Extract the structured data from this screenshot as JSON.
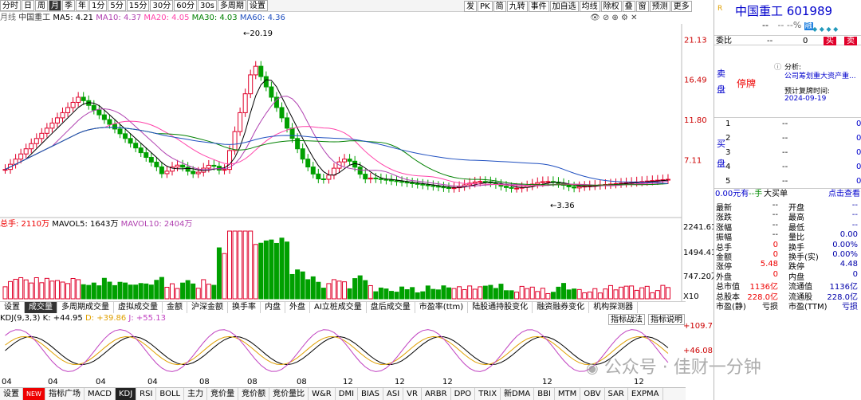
{
  "toolbar": {
    "items": [
      "分时",
      "日",
      "周",
      "月",
      "季",
      "年",
      "1分",
      "5分",
      "15分",
      "30分",
      "60分",
      "30s",
      "多周期",
      "设置"
    ],
    "active": "月",
    "right": [
      "发",
      "PK",
      "简",
      "九转",
      "事件",
      "加自选",
      "均线",
      "除权",
      "叠",
      "窗",
      "预测",
      "更多"
    ]
  },
  "legend": {
    "label": "月线",
    "name": "中国重工",
    "ma5": "MA5: 4.21",
    "ma10": "MA10: 4.37",
    "ma20": "MA20: 4.05",
    "ma30": "MA30: 4.03",
    "ma60": "MA60: 4.36"
  },
  "price_axis": [
    "21.13",
    "16.49",
    "11.80",
    "7.11"
  ],
  "price_peak": "20.19",
  "price_low": "3.36",
  "vol_legend": {
    "total": "总手: 2110万",
    "mavol5": "MAVOL5: 1643万",
    "mavol10": "MAVOL10: 2404万"
  },
  "vol_axis": [
    "2241.61",
    "1494.41",
    "747.20万",
    "X10"
  ],
  "tabs": [
    "设置",
    "成交量",
    "多周期成交量",
    "虚拟成交量",
    "金额",
    "沪深金额",
    "换手率",
    "内盘",
    "外盘",
    "AI立桩成交量",
    "盘后成交量",
    "市盈率(ttm)",
    "陆股通持股变化",
    "融资融券变化",
    "机构探测器"
  ],
  "active_tab": "成交量",
  "kdj_legend": {
    "label": "KDJ(9,3,3)",
    "k": "K: +44.95",
    "d": "D: +39.86",
    "j": "J: +55.13"
  },
  "kdj_buttons": [
    "指标战法",
    "指标说明"
  ],
  "kdj_axis": [
    "+109.7",
    "+46.08"
  ],
  "date_labels": [
    "04",
    "04",
    "04",
    "04",
    "08",
    "08",
    "08",
    "12",
    "12",
    "12",
    "12",
    "12"
  ],
  "bottom_tabs": [
    "设置",
    "NEW",
    "指标广场",
    "MACD",
    "KDJ",
    "RSI",
    "BOLL",
    "主力",
    "竞价量",
    "竞价额",
    "竞价量比",
    "W&R",
    "DMI",
    "BIAS",
    "ASI",
    "VR",
    "ARBR",
    "DPO",
    "TRIX",
    "新DMA",
    "BBI",
    "MTM",
    "OBV",
    "SAR",
    "EXPMA"
  ],
  "bottom_active": "KDJ",
  "watermark": "公众号 · 佳财一分钟",
  "stock": {
    "name": "中国重工",
    "code": "601989",
    "price_dash": "--",
    "chg1": "--",
    "chg2": "--%",
    "ro": "融"
  },
  "weibi": {
    "label": "委比",
    "v1": "--",
    "v2": "0",
    "sell_btn": "买",
    "buy_btn": "卖"
  },
  "sell_label": "卖盘",
  "halt": "停牌",
  "analysis": {
    "label": "分析:",
    "text": "公司筹划重大资产重...",
    "resume_label": "预计复牌时间:",
    "resume_date": "2024-09-19"
  },
  "buy_label": "买盘",
  "buy_rows": [
    {
      "n": "1",
      "p": "--",
      "v": "0"
    },
    {
      "n": "2",
      "p": "--",
      "v": "0"
    },
    {
      "n": "3",
      "p": "--",
      "v": "0"
    },
    {
      "n": "4",
      "p": "--",
      "v": "0"
    },
    {
      "n": "5",
      "p": "--",
      "v": "0"
    }
  ],
  "flow": {
    "amt": "0.00元有",
    "hand": "--手",
    "big": "大买单",
    "link": "点击查看"
  },
  "stats": [
    [
      "最新",
      "--",
      "开盘",
      "--"
    ],
    [
      "涨跌",
      "--",
      "最高",
      "--"
    ],
    [
      "涨幅",
      "--",
      "最低",
      "--"
    ],
    [
      "振幅",
      "--",
      "量比",
      "0.00"
    ],
    [
      "总手",
      "0",
      "换手",
      "0.00%"
    ],
    [
      "金额",
      "0",
      "换手(实)",
      "0.00%"
    ],
    [
      "涨停",
      "5.48",
      "跌停",
      "4.48"
    ],
    [
      "外盘",
      "0",
      "内盘",
      "0"
    ],
    [
      "总市值",
      "1136亿",
      "流通值",
      "1136亿"
    ],
    [
      "总股本",
      "228.0亿",
      "流通股",
      "228.0亿"
    ],
    [
      "市盈(静)",
      "亏损",
      "市盈(TTM)",
      "亏损"
    ]
  ],
  "colors": {
    "up": "#e0002a",
    "down": "#00a000",
    "ma5": "#000000",
    "ma10": "#b040b0",
    "ma20": "#ff44aa",
    "ma30": "#008000",
    "ma60": "#2050c0"
  },
  "chart_data": {
    "type": "candlestick",
    "x_ticks": [
      "04",
      "04",
      "04",
      "04",
      "08",
      "08",
      "08",
      "12",
      "12",
      "12",
      "12",
      "12"
    ],
    "peak": 20.19,
    "low": 3.36,
    "y_ticks": [
      21.13,
      16.49,
      11.8,
      7.11
    ]
  }
}
